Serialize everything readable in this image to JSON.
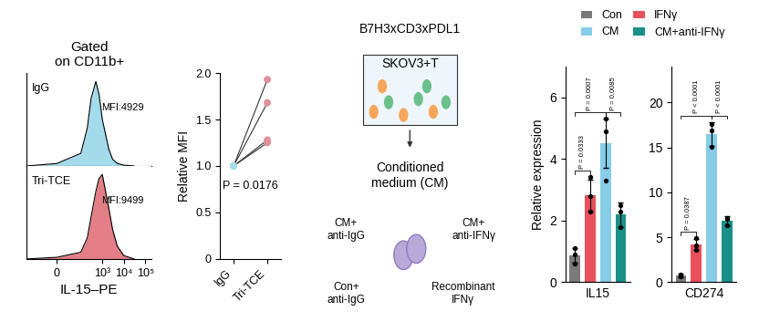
{
  "chart_data": [
    {
      "type": "area",
      "title": "Gated\non CD11b+",
      "log": "x",
      "tick_labels": false,
      "xlim": [
        -200,
        200000
      ],
      "ylim": [
        0,
        110
      ],
      "series": [
        {
          "name": "IgG",
          "color": "#9ad8e8",
          "x": [
            -200,
            0,
            100,
            200,
            300,
            500,
            700,
            1000,
            2000,
            3000,
            5000,
            10000,
            30000
          ],
          "values": [
            0,
            3,
            15,
            45,
            80,
            100,
            85,
            55,
            20,
            8,
            3,
            1,
            0
          ]
        }
      ],
      "annotations": [
        "MFI:4929"
      ]
    },
    {
      "type": "area",
      "x_label": "IL-15–PE",
      "log": "x",
      "tick_labels": "x",
      "xlim": [
        -200,
        200000
      ],
      "ylim": [
        0,
        110
      ],
      "xticks": [
        0,
        {
          "value": 1000,
          "label": "10³"
        },
        {
          "value": 10000,
          "label": "10⁴"
        },
        {
          "value": 100000,
          "label": "10⁵"
        }
      ],
      "series": [
        {
          "name": "Tri-TCE",
          "color": "#e0707a",
          "x": [
            -200,
            0,
            100,
            200,
            300,
            500,
            700,
            1000,
            2000,
            3000,
            5000,
            10000,
            30000
          ],
          "values": [
            0,
            2,
            8,
            25,
            50,
            80,
            95,
            100,
            60,
            35,
            15,
            4,
            0
          ]
        }
      ],
      "annotations": [
        "MFI:9499"
      ]
    },
    {
      "type": "paired",
      "y_label": "Relative MFI",
      "categories": [
        "IgG",
        "Tri-TCE"
      ],
      "colors": [
        "#a8dcea",
        "#e0909a"
      ],
      "values": [
        [
          1,
          1.93
        ],
        [
          1,
          1.68
        ],
        [
          1,
          1.28
        ],
        [
          1,
          1.25
        ]
      ],
      "ylim": [
        0,
        2.0
      ],
      "yticks": [
        0,
        0.5,
        {
          "value": 1,
          "label": "1.0"
        },
        1.5,
        {
          "value": 2,
          "label": "2.0"
        }
      ],
      "annotations": [
        "P = 0.0176"
      ]
    },
    {
      "type": "bar",
      "x_label": "IL15",
      "y_label": "Relative expression",
      "legend": "upper center",
      "tick_labels": "y",
      "categories": [
        "Con",
        "IFNγ",
        "CM",
        "CM+anti-IFNγ"
      ],
      "colors": [
        "#7a7a7a",
        "#e8505b",
        "#87cde8",
        "#1a9088"
      ],
      "values": [
        0.87,
        2.83,
        4.5,
        2.2
      ],
      "errors": [
        0.25,
        0.5,
        0.8,
        0.4
      ],
      "points": [
        [
          0.6,
          0.9,
          1.1
        ],
        [
          2.3,
          3.4,
          2.8
        ],
        [
          3.3,
          5.3,
          4.9
        ],
        [
          2.5,
          1.8,
          2.3
        ]
      ],
      "ylim": [
        0,
        7
      ],
      "yticks": [
        0,
        2,
        4,
        6
      ],
      "comparisons": [
        {
          "groups": [
            "Con",
            "IFNγ"
          ],
          "label": "P = 0.0333"
        },
        {
          "groups": [
            "Con",
            "CM"
          ],
          "label": "P = 0.0007"
        },
        {
          "groups": [
            "CM",
            "CM+anti-IFNγ"
          ],
          "label": "P = 0.0085"
        }
      ]
    },
    {
      "type": "bar",
      "x_label": "CD274",
      "tick_labels": "y",
      "categories": [
        "Con",
        "IFNγ",
        "CM",
        "CM+anti-IFNγ"
      ],
      "colors": [
        "#7a7a7a",
        "#e8505b",
        "#87cde8",
        "#1a9088"
      ],
      "values": [
        0.77,
        4.2,
        16.5,
        6.8
      ],
      "errors": [
        0.2,
        0.6,
        1.3,
        0.5
      ],
      "points": [
        [
          0.6,
          0.9,
          0.8
        ],
        [
          3.6,
          4.9,
          4.1
        ],
        [
          15.1,
          17.6,
          16.9
        ],
        [
          6.3,
          7.1,
          7.0
        ]
      ],
      "ylim": [
        0,
        24
      ],
      "yticks": [
        0,
        5,
        10,
        15,
        20
      ],
      "comparisons": [
        {
          "groups": [
            "Con",
            "IFNγ"
          ],
          "label": "P = 0.0387"
        },
        {
          "groups": [
            "Con",
            "CM"
          ],
          "label": "P < 0.0001"
        },
        {
          "groups": [
            "CM",
            "CM+anti-IFNγ"
          ],
          "label": "P < 0.0001"
        }
      ]
    }
  ],
  "diagram": {
    "antibody": "B7H3xCD3xPDL1",
    "culture": "SKOV3+T",
    "product": "Conditioned\nmedium (CM)",
    "conditions": [
      "CM+\nanti-IgG",
      "CM+\nanti-IFNγ",
      "Con+\nanti-IgG",
      "Recombinant\nIFNγ"
    ]
  }
}
